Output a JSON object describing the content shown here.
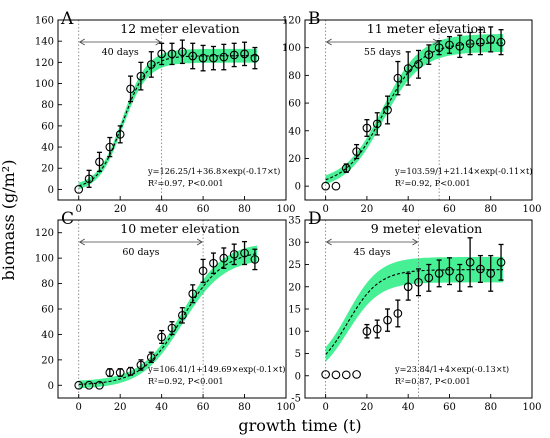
{
  "figure": {
    "xlabel": "growth time (t)",
    "ylabel": "biomass (g/m²)",
    "fit_color": "#33ee88",
    "line_color": "#000000"
  },
  "chart_data": [
    {
      "type": "scatter",
      "panel_label": "A",
      "title": "12 meter elevation",
      "duration_label": "40 days",
      "span_x": [
        0,
        40
      ],
      "equation": "y=126.25/1+36.8×exp(-0.17×t)",
      "stats": "R²=0.97, P<0.001",
      "xlim": [
        -10,
        100
      ],
      "ylim": [
        -10,
        160
      ],
      "xticks": [
        0,
        20,
        40,
        60,
        80,
        100
      ],
      "yticks": [
        0,
        20,
        40,
        60,
        80,
        100,
        120,
        140,
        160
      ],
      "fit": {
        "K": 126.25,
        "a": 36.8,
        "r": 0.17,
        "band": 5
      },
      "x": [
        0,
        5,
        10,
        15,
        20,
        25,
        30,
        35,
        40,
        45,
        50,
        55,
        60,
        65,
        70,
        75,
        80,
        85
      ],
      "y": [
        0,
        10,
        26,
        40,
        52,
        95,
        107,
        118,
        128,
        128,
        130,
        126,
        124,
        124,
        125,
        127,
        128,
        124
      ],
      "err": [
        0,
        8,
        9,
        9,
        8,
        12,
        13,
        12,
        10,
        10,
        11,
        12,
        12,
        11,
        12,
        11,
        11,
        10
      ]
    },
    {
      "type": "scatter",
      "panel_label": "B",
      "title": "11 meter elevation",
      "duration_label": "55 days",
      "span_x": [
        0,
        55
      ],
      "equation": "y=103.59/1+21.14×exp(-0.11×t)",
      "stats": "R²=0.92, P<0.001",
      "xlim": [
        -10,
        100
      ],
      "ylim": [
        -10,
        120
      ],
      "xticks": [
        0,
        20,
        40,
        60,
        80,
        100
      ],
      "yticks": [
        0,
        20,
        40,
        60,
        80,
        100,
        120
      ],
      "fit": {
        "K": 103.59,
        "a": 21.14,
        "r": 0.11,
        "band": 5
      },
      "x": [
        0,
        5,
        10,
        15,
        20,
        25,
        30,
        35,
        40,
        45,
        50,
        55,
        60,
        65,
        70,
        75,
        80,
        85
      ],
      "y": [
        0,
        0,
        13,
        25,
        42,
        45,
        55,
        78,
        85,
        88,
        95,
        100,
        102,
        101,
        103,
        104,
        106,
        104
      ],
      "err": [
        0,
        0,
        3,
        5,
        6,
        8,
        10,
        12,
        12,
        10,
        7,
        5,
        6,
        8,
        8,
        9,
        9,
        9
      ]
    },
    {
      "type": "scatter",
      "panel_label": "C",
      "title": "10 meter elevation",
      "duration_label": "60 days",
      "span_x": [
        0,
        60
      ],
      "equation": "y=106.41/1+149.69×exp(-0.1×t)",
      "stats": "R²=0.92, P<0.001",
      "xlim": [
        -10,
        100
      ],
      "ylim": [
        -10,
        130
      ],
      "xticks": [
        0,
        20,
        40,
        60,
        80,
        100
      ],
      "yticks": [
        0,
        20,
        40,
        60,
        80,
        100,
        120
      ],
      "fit": {
        "K": 106.41,
        "a": 149.69,
        "r": 0.1,
        "band": 5
      },
      "x": [
        0,
        5,
        10,
        15,
        20,
        25,
        30,
        35,
        40,
        45,
        50,
        55,
        60,
        65,
        70,
        75,
        80,
        85
      ],
      "y": [
        0,
        0,
        0,
        10,
        10,
        11,
        16,
        22,
        38,
        45,
        55,
        72,
        90,
        96,
        100,
        103,
        104,
        99
      ],
      "err": [
        0,
        0,
        0,
        3,
        3,
        3,
        4,
        4,
        5,
        5,
        6,
        7,
        9,
        8,
        8,
        8,
        9,
        8
      ]
    },
    {
      "type": "scatter",
      "panel_label": "D",
      "title": "9 meter elevation",
      "duration_label": "45 days",
      "span_x": [
        0,
        45
      ],
      "equation": "y=23.84/1+4×exp(-0.13×t)",
      "stats": "R²=0.87, P<0.001",
      "xlim": [
        -10,
        100
      ],
      "ylim": [
        -5,
        35
      ],
      "xticks": [
        0,
        20,
        40,
        60,
        80,
        100
      ],
      "yticks": [
        -5,
        0,
        5,
        10,
        15,
        20,
        25,
        30,
        35
      ],
      "fit": {
        "K": 23.84,
        "a": 4,
        "r": 0.13,
        "band": 2.2,
        "start_x": 0
      },
      "x": [
        0,
        5,
        10,
        15,
        20,
        25,
        30,
        35,
        40,
        45,
        50,
        55,
        60,
        65,
        70,
        75,
        80,
        85
      ],
      "y": [
        0.3,
        0.2,
        0.2,
        0.3,
        10,
        10.5,
        12.5,
        14,
        20,
        21,
        22,
        23,
        23.5,
        22,
        25.5,
        24,
        23,
        25.5
      ],
      "err": [
        0,
        0,
        0,
        0,
        1.5,
        2,
        2.5,
        3,
        3,
        3,
        3,
        3,
        3,
        3,
        5.5,
        3,
        4,
        4
      ]
    }
  ]
}
